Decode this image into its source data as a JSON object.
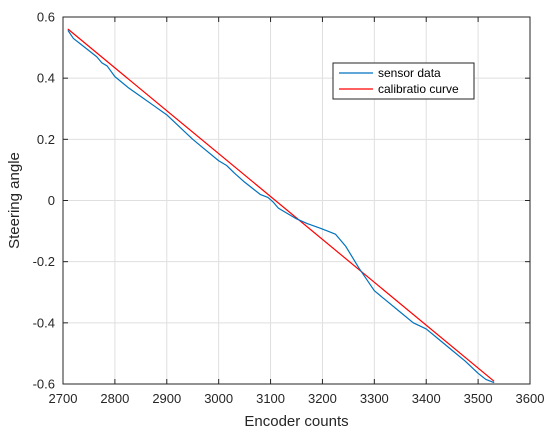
{
  "chart_data": {
    "type": "line",
    "title": "",
    "xlabel": "Encoder counts",
    "ylabel": "Steering angle",
    "xlim": [
      2700,
      3600
    ],
    "ylim": [
      -0.6,
      0.6
    ],
    "grid": true,
    "legend_position": "top-right",
    "x_ticks": [
      2700,
      2800,
      2900,
      3000,
      3100,
      3200,
      3300,
      3400,
      3500,
      3600
    ],
    "x_tick_labels": [
      "2700",
      "2800",
      "2900",
      "3000",
      "3100",
      "3200",
      "3300",
      "3400",
      "3500",
      "3600"
    ],
    "y_ticks": [
      -0.6,
      -0.4,
      -0.2,
      0,
      0.2,
      0.4,
      0.6
    ],
    "y_tick_labels": [
      "-0.6",
      "-0.4",
      "-0.2",
      "0",
      "0.2",
      "0.4",
      "0.6"
    ],
    "series": [
      {
        "name": "sensor data",
        "color": "#0072BD",
        "x": [
          2710,
          2720,
          2735,
          2750,
          2765,
          2775,
          2785,
          2800,
          2825,
          2850,
          2875,
          2900,
          2925,
          2950,
          2975,
          3000,
          3015,
          3030,
          3050,
          3065,
          3080,
          3095,
          3105,
          3115,
          3130,
          3150,
          3170,
          3195,
          3210,
          3225,
          3245,
          3270,
          3300,
          3325,
          3350,
          3375,
          3400,
          3425,
          3450,
          3475,
          3500,
          3515,
          3530
        ],
        "y": [
          0.555,
          0.53,
          0.51,
          0.49,
          0.47,
          0.45,
          0.44,
          0.405,
          0.37,
          0.34,
          0.31,
          0.28,
          0.24,
          0.2,
          0.165,
          0.13,
          0.115,
          0.09,
          0.06,
          0.04,
          0.02,
          0.01,
          -0.005,
          -0.025,
          -0.04,
          -0.06,
          -0.075,
          -0.09,
          -0.1,
          -0.11,
          -0.15,
          -0.22,
          -0.295,
          -0.33,
          -0.365,
          -0.4,
          -0.42,
          -0.455,
          -0.49,
          -0.525,
          -0.565,
          -0.585,
          -0.595
        ]
      },
      {
        "name": "calibratio curve",
        "color": "#FF0000",
        "x": [
          2710,
          3530
        ],
        "y": [
          0.56,
          -0.59
        ]
      }
    ]
  }
}
